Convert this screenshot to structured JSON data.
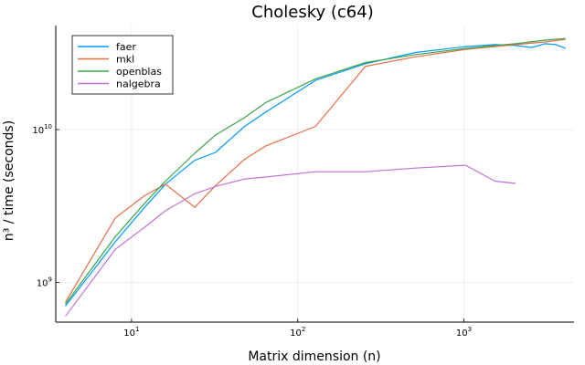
{
  "chart_data": {
    "type": "line",
    "title": "Cholesky (c64)",
    "xlabel": "Matrix dimension (n)",
    "ylabel": "n³ / time (seconds)",
    "x_scale": "log",
    "y_scale": "log",
    "xlim": [
      3.5,
      4600
    ],
    "ylim": [
      550000000,
      48000000000
    ],
    "x_ticks": [
      {
        "value": 10,
        "base": "10",
        "exp": "1"
      },
      {
        "value": 100,
        "base": "10",
        "exp": "2"
      },
      {
        "value": 1000,
        "base": "10",
        "exp": "3"
      }
    ],
    "y_ticks": [
      {
        "value": 1000000000,
        "base": "10",
        "exp": "9"
      },
      {
        "value": 10000000000,
        "base": "10",
        "exp": "10"
      }
    ],
    "grid": true,
    "legend_position": "top-left",
    "series": [
      {
        "name": "faer",
        "color": "#009af9",
        "x": [
          4,
          8,
          12,
          16,
          24,
          32,
          48,
          64,
          128,
          256,
          512,
          1024,
          1536,
          2048,
          2560,
          3072,
          3584,
          4096
        ],
        "y": [
          700000000,
          1850000000,
          3100000000,
          4400000000,
          6300000000,
          7100000000,
          10500000000,
          13000000000,
          21000000000,
          27000000000,
          32000000000,
          35000000000,
          36000000000,
          35500000000,
          34500000000,
          36500000000,
          36000000000,
          34000000000
        ]
      },
      {
        "name": "mkl",
        "color": "#e26f46",
        "x": [
          4,
          8,
          12,
          16,
          24,
          32,
          48,
          64,
          128,
          256,
          512,
          1024,
          1536,
          2048,
          3072,
          4096
        ],
        "y": [
          740000000,
          2650000000,
          3700000000,
          4400000000,
          3100000000,
          4300000000,
          6400000000,
          7800000000,
          10500000000,
          26000000000,
          30000000000,
          33500000000,
          35000000000,
          36000000000,
          37500000000,
          39000000000
        ]
      },
      {
        "name": "openblas",
        "color": "#3da44d",
        "x": [
          4,
          8,
          12,
          16,
          24,
          32,
          48,
          64,
          128,
          256,
          512,
          1024,
          1536,
          2048,
          3072,
          4096
        ],
        "y": [
          720000000,
          2000000000,
          3300000000,
          4600000000,
          7000000000,
          9200000000,
          12000000000,
          15000000000,
          21500000000,
          27500000000,
          31000000000,
          34000000000,
          35500000000,
          36500000000,
          38500000000,
          39500000000
        ]
      },
      {
        "name": "nalgebra",
        "color": "#c271d2",
        "x": [
          4,
          8,
          12,
          16,
          24,
          32,
          48,
          64,
          128,
          256,
          512,
          1024,
          1536,
          2048
        ],
        "y": [
          600000000,
          1650000000,
          2300000000,
          2950000000,
          3800000000,
          4250000000,
          4750000000,
          4900000000,
          5300000000,
          5300000000,
          5600000000,
          5850000000,
          4600000000,
          4450000000
        ]
      }
    ]
  }
}
